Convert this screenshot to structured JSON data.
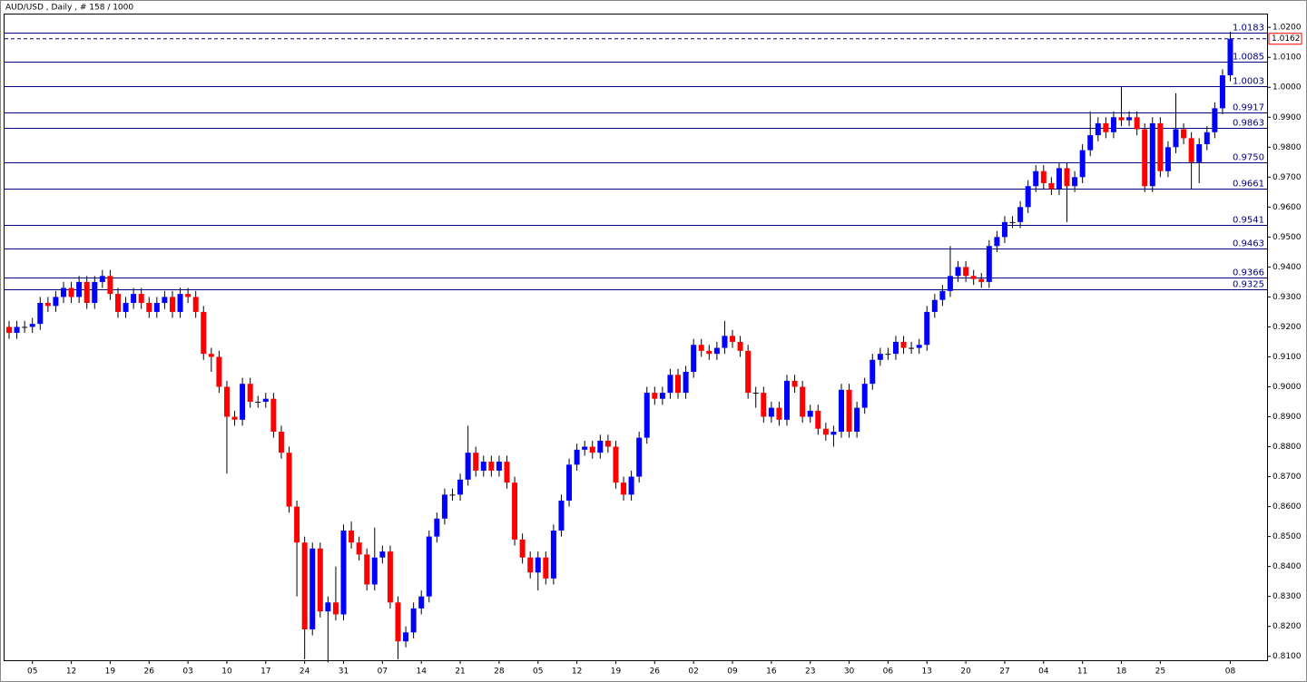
{
  "chart_data": {
    "type": "candlestick",
    "title": "AUD/USD , Daily , # 158 / 1000",
    "up_color": "#0000ff",
    "down_color": "#ff0000",
    "wick_color": "#000000",
    "level_color": "#000080",
    "grid": false,
    "ylim": [
      0.8087,
      1.0243
    ],
    "yticks": [
      {
        "value": 0.81,
        "label": "0.8100"
      },
      {
        "value": 0.82,
        "label": "0.8200"
      },
      {
        "value": 0.83,
        "label": "0.8300"
      },
      {
        "value": 0.84,
        "label": "0.8400"
      },
      {
        "value": 0.85,
        "label": "0.8500"
      },
      {
        "value": 0.86,
        "label": "0.8600"
      },
      {
        "value": 0.87,
        "label": "0.8700"
      },
      {
        "value": 0.88,
        "label": "0.8800"
      },
      {
        "value": 0.89,
        "label": "0.8900"
      },
      {
        "value": 0.9,
        "label": "0.9000"
      },
      {
        "value": 0.91,
        "label": "0.9100"
      },
      {
        "value": 0.92,
        "label": "0.9200"
      },
      {
        "value": 0.93,
        "label": "0.9300"
      },
      {
        "value": 0.94,
        "label": "0.9400"
      },
      {
        "value": 0.95,
        "label": "0.9500"
      },
      {
        "value": 0.96,
        "label": "0.9600"
      },
      {
        "value": 0.97,
        "label": "0.9700"
      },
      {
        "value": 0.98,
        "label": "0.9800"
      },
      {
        "value": 0.99,
        "label": "0.9900"
      },
      {
        "value": 1.0,
        "label": "1.0000"
      },
      {
        "value": 1.01,
        "label": "1.0100"
      },
      {
        "value": 1.02,
        "label": "1.0200"
      }
    ],
    "levels": [
      {
        "value": 1.0183,
        "label": "1.0183"
      },
      {
        "value": 1.0085,
        "label": "1.0085"
      },
      {
        "value": 1.0003,
        "label": "1.0003"
      },
      {
        "value": 0.9917,
        "label": "0.9917"
      },
      {
        "value": 0.9863,
        "label": "0.9863"
      },
      {
        "value": 0.975,
        "label": "0.9750"
      },
      {
        "value": 0.9661,
        "label": "0.9661"
      },
      {
        "value": 0.9541,
        "label": "0.9541"
      },
      {
        "value": 0.9463,
        "label": "0.9463"
      },
      {
        "value": 0.9366,
        "label": "0.9366"
      },
      {
        "value": 0.9325,
        "label": "0.9325"
      }
    ],
    "last_price": {
      "value": 1.0162,
      "label": "1.0162"
    },
    "categories": [
      null,
      null,
      null,
      "05",
      null,
      null,
      null,
      null,
      "12",
      null,
      null,
      null,
      null,
      "19",
      null,
      null,
      null,
      null,
      "26",
      null,
      null,
      null,
      null,
      "03",
      null,
      null,
      null,
      null,
      "10",
      null,
      null,
      null,
      null,
      "17",
      null,
      null,
      null,
      null,
      "24",
      null,
      null,
      null,
      null,
      "31",
      null,
      null,
      null,
      null,
      "07",
      null,
      null,
      null,
      null,
      "14",
      null,
      null,
      null,
      null,
      "21",
      null,
      null,
      null,
      null,
      "28",
      null,
      null,
      null,
      null,
      "05",
      null,
      null,
      null,
      null,
      "12",
      null,
      null,
      null,
      null,
      "19",
      null,
      null,
      null,
      null,
      "26",
      null,
      null,
      null,
      null,
      "02",
      null,
      null,
      null,
      null,
      "09",
      null,
      null,
      null,
      null,
      "16",
      null,
      null,
      null,
      null,
      "23",
      null,
      null,
      null,
      null,
      "30",
      null,
      null,
      null,
      null,
      "06",
      null,
      null,
      null,
      null,
      "13",
      null,
      null,
      null,
      null,
      "20",
      null,
      null,
      null,
      null,
      "27",
      null,
      null,
      null,
      null,
      "04",
      null,
      null,
      null,
      null,
      "11",
      null,
      null,
      null,
      null,
      "18",
      null,
      null,
      null,
      null,
      "25",
      null,
      null,
      null,
      null,
      null,
      null,
      null,
      null,
      "08"
    ],
    "open": [
      0.92,
      0.918,
      0.92,
      0.92,
      0.921,
      0.928,
      0.927,
      0.93,
      0.933,
      0.93,
      0.935,
      0.928,
      0.935,
      0.937,
      0.931,
      0.925,
      0.928,
      0.931,
      0.928,
      0.925,
      0.928,
      0.93,
      0.925,
      0.931,
      0.93,
      0.925,
      0.911,
      0.91,
      0.9,
      0.89,
      0.889,
      0.901,
      0.895,
      0.895,
      0.896,
      0.885,
      0.878,
      0.86,
      0.848,
      0.819,
      0.846,
      0.825,
      0.828,
      0.824,
      0.852,
      0.848,
      0.844,
      0.834,
      0.843,
      0.845,
      0.828,
      0.815,
      0.818,
      0.826,
      0.83,
      0.85,
      0.856,
      0.864,
      0.864,
      0.869,
      0.878,
      0.872,
      0.875,
      0.872,
      0.875,
      0.868,
      0.849,
      0.843,
      0.838,
      0.843,
      0.836,
      0.852,
      0.862,
      0.874,
      0.879,
      0.88,
      0.878,
      0.882,
      0.88,
      0.868,
      0.864,
      0.87,
      0.883,
      0.898,
      0.896,
      0.898,
      0.904,
      0.898,
      0.905,
      0.914,
      0.912,
      0.911,
      0.913,
      0.917,
      0.915,
      0.912,
      0.898,
      0.898,
      0.89,
      0.893,
      0.889,
      0.902,
      0.9,
      0.89,
      0.892,
      0.886,
      0.884,
      0.885,
      0.899,
      0.885,
      0.893,
      0.901,
      0.909,
      0.911,
      0.911,
      0.915,
      0.913,
      0.913,
      0.914,
      0.925,
      0.929,
      0.932,
      0.937,
      0.94,
      0.937,
      0.936,
      0.935,
      0.947,
      0.95,
      0.955,
      0.955,
      0.96,
      0.967,
      0.972,
      0.968,
      0.966,
      0.973,
      0.967,
      0.97,
      0.979,
      0.984,
      0.988,
      0.985,
      0.99,
      0.989,
      0.99,
      0.986,
      0.967,
      0.988,
      0.972,
      0.98,
      0.986,
      0.983,
      0.975,
      0.981,
      0.985,
      0.993,
      1.004
    ],
    "close": [
      0.918,
      0.92,
      0.92,
      0.921,
      0.928,
      0.927,
      0.93,
      0.933,
      0.93,
      0.935,
      0.928,
      0.935,
      0.937,
      0.931,
      0.925,
      0.928,
      0.931,
      0.928,
      0.925,
      0.928,
      0.93,
      0.925,
      0.931,
      0.93,
      0.925,
      0.911,
      0.91,
      0.9,
      0.89,
      0.889,
      0.901,
      0.895,
      0.895,
      0.896,
      0.885,
      0.878,
      0.86,
      0.848,
      0.819,
      0.846,
      0.825,
      0.828,
      0.824,
      0.852,
      0.848,
      0.844,
      0.834,
      0.843,
      0.845,
      0.828,
      0.815,
      0.818,
      0.826,
      0.83,
      0.85,
      0.856,
      0.864,
      0.864,
      0.869,
      0.878,
      0.872,
      0.875,
      0.872,
      0.875,
      0.868,
      0.849,
      0.843,
      0.838,
      0.843,
      0.836,
      0.852,
      0.862,
      0.874,
      0.879,
      0.88,
      0.878,
      0.882,
      0.88,
      0.868,
      0.864,
      0.87,
      0.883,
      0.898,
      0.896,
      0.898,
      0.904,
      0.898,
      0.905,
      0.914,
      0.912,
      0.911,
      0.913,
      0.917,
      0.915,
      0.912,
      0.898,
      0.898,
      0.89,
      0.893,
      0.889,
      0.902,
      0.9,
      0.89,
      0.892,
      0.886,
      0.884,
      0.885,
      0.899,
      0.885,
      0.893,
      0.901,
      0.909,
      0.911,
      0.911,
      0.915,
      0.913,
      0.913,
      0.914,
      0.925,
      0.929,
      0.932,
      0.937,
      0.94,
      0.937,
      0.936,
      0.935,
      0.947,
      0.95,
      0.955,
      0.955,
      0.96,
      0.967,
      0.972,
      0.968,
      0.966,
      0.973,
      0.967,
      0.97,
      0.979,
      0.984,
      0.988,
      0.985,
      0.99,
      0.989,
      0.99,
      0.986,
      0.967,
      0.988,
      0.972,
      0.98,
      0.986,
      0.983,
      0.975,
      0.981,
      0.985,
      0.993,
      1.004,
      1.0162
    ],
    "high": [
      0.922,
      0.922,
      0.922,
      0.923,
      0.93,
      0.93,
      0.932,
      0.935,
      0.935,
      0.937,
      0.937,
      0.937,
      0.939,
      0.939,
      0.933,
      0.93,
      0.933,
      0.933,
      0.93,
      0.93,
      0.932,
      0.932,
      0.933,
      0.933,
      0.932,
      0.927,
      0.913,
      0.912,
      0.902,
      0.892,
      0.903,
      0.903,
      0.897,
      0.898,
      0.898,
      0.887,
      0.88,
      0.862,
      0.85,
      0.848,
      0.848,
      0.83,
      0.84,
      0.854,
      0.855,
      0.85,
      0.846,
      0.853,
      0.847,
      0.847,
      0.83,
      0.82,
      0.828,
      0.832,
      0.852,
      0.858,
      0.866,
      0.866,
      0.871,
      0.887,
      0.88,
      0.877,
      0.877,
      0.877,
      0.877,
      0.87,
      0.851,
      0.845,
      0.845,
      0.845,
      0.854,
      0.864,
      0.876,
      0.881,
      0.882,
      0.882,
      0.884,
      0.884,
      0.882,
      0.87,
      0.872,
      0.885,
      0.9,
      0.9,
      0.9,
      0.906,
      0.906,
      0.907,
      0.916,
      0.916,
      0.914,
      0.915,
      0.922,
      0.919,
      0.917,
      0.914,
      0.9,
      0.9,
      0.895,
      0.895,
      0.904,
      0.904,
      0.902,
      0.894,
      0.894,
      0.888,
      0.887,
      0.901,
      0.901,
      0.895,
      0.903,
      0.911,
      0.913,
      0.913,
      0.917,
      0.917,
      0.915,
      0.916,
      0.927,
      0.931,
      0.934,
      0.947,
      0.942,
      0.942,
      0.939,
      0.938,
      0.949,
      0.952,
      0.957,
      0.957,
      0.962,
      0.969,
      0.974,
      0.974,
      0.97,
      0.975,
      0.975,
      0.972,
      0.981,
      0.992,
      0.99,
      0.99,
      0.992,
      1.0,
      0.992,
      0.992,
      0.988,
      0.99,
      0.99,
      0.982,
      0.998,
      0.988,
      0.985,
      0.983,
      0.987,
      0.995,
      1.006,
      1.0185
    ],
    "low": [
      0.916,
      0.916,
      0.918,
      0.918,
      0.919,
      0.925,
      0.925,
      0.928,
      0.928,
      0.928,
      0.926,
      0.926,
      0.933,
      0.929,
      0.923,
      0.923,
      0.926,
      0.926,
      0.923,
      0.923,
      0.926,
      0.923,
      0.923,
      0.928,
      0.923,
      0.909,
      0.905,
      0.898,
      0.871,
      0.887,
      0.887,
      0.893,
      0.893,
      0.893,
      0.883,
      0.876,
      0.858,
      0.83,
      0.809,
      0.817,
      0.823,
      0.808,
      0.822,
      0.822,
      0.846,
      0.842,
      0.832,
      0.832,
      0.841,
      0.826,
      0.809,
      0.813,
      0.816,
      0.824,
      0.828,
      0.848,
      0.854,
      0.862,
      0.862,
      0.867,
      0.87,
      0.87,
      0.87,
      0.87,
      0.866,
      0.847,
      0.841,
      0.836,
      0.832,
      0.834,
      0.834,
      0.85,
      0.86,
      0.872,
      0.877,
      0.876,
      0.876,
      0.878,
      0.866,
      0.862,
      0.862,
      0.868,
      0.881,
      0.894,
      0.894,
      0.896,
      0.896,
      0.896,
      0.903,
      0.91,
      0.909,
      0.909,
      0.911,
      0.913,
      0.91,
      0.896,
      0.893,
      0.888,
      0.888,
      0.887,
      0.887,
      0.898,
      0.888,
      0.888,
      0.884,
      0.882,
      0.88,
      0.883,
      0.883,
      0.883,
      0.891,
      0.899,
      0.907,
      0.909,
      0.909,
      0.911,
      0.911,
      0.911,
      0.912,
      0.923,
      0.927,
      0.93,
      0.935,
      0.935,
      0.934,
      0.933,
      0.933,
      0.945,
      0.948,
      0.953,
      0.953,
      0.958,
      0.965,
      0.966,
      0.964,
      0.964,
      0.955,
      0.965,
      0.968,
      0.977,
      0.982,
      0.983,
      0.983,
      0.987,
      0.987,
      0.984,
      0.965,
      0.965,
      0.97,
      0.97,
      0.978,
      0.981,
      0.966,
      0.968,
      0.979,
      0.983,
      0.991,
      1.002
    ]
  }
}
